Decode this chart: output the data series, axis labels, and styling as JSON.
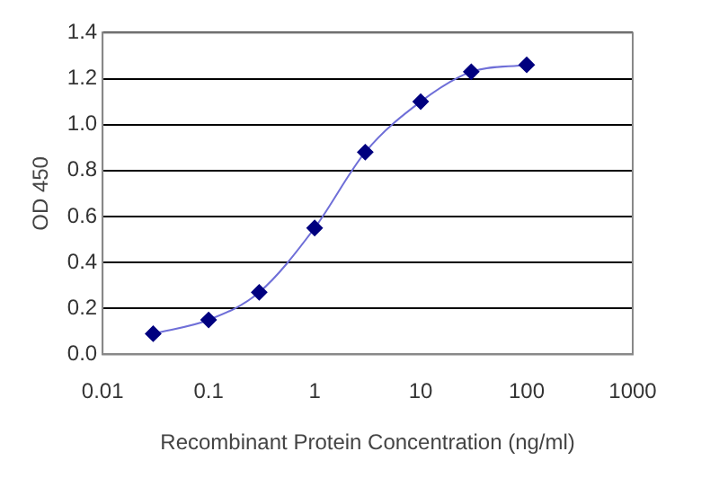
{
  "chart_data": {
    "type": "line",
    "xlabel": "Recombinant Protein Concentration (ng/ml)",
    "ylabel": "OD 450",
    "x": [
      0.03,
      0.1,
      0.3,
      1,
      3,
      10,
      30,
      100
    ],
    "series": [
      {
        "color": "#00007f",
        "values": [
          0.09,
          0.15,
          0.27,
          0.55,
          0.88,
          1.1,
          1.23,
          1.26
        ]
      }
    ],
    "log": "x",
    "xlim": [
      0.01,
      1000
    ],
    "xticks": [
      0.01,
      0.1,
      1,
      10,
      100,
      1000
    ],
    "ylim": [
      0,
      1.4
    ],
    "yticks": [
      {
        "value": 0,
        "label": "0.0"
      },
      {
        "value": 0.2,
        "label": "0.2"
      },
      {
        "value": 0.4,
        "label": "0.4"
      },
      {
        "value": 0.6,
        "label": "0.6"
      },
      {
        "value": 0.8,
        "label": "0.8"
      },
      {
        "value": 1.0,
        "label": "1.0"
      },
      {
        "value": 1.2,
        "label": "1.2"
      },
      {
        "value": 1.4,
        "label": "1.4"
      }
    ],
    "grid": "y",
    "marker": "diamond",
    "line_style": "solid",
    "legend": false
  }
}
